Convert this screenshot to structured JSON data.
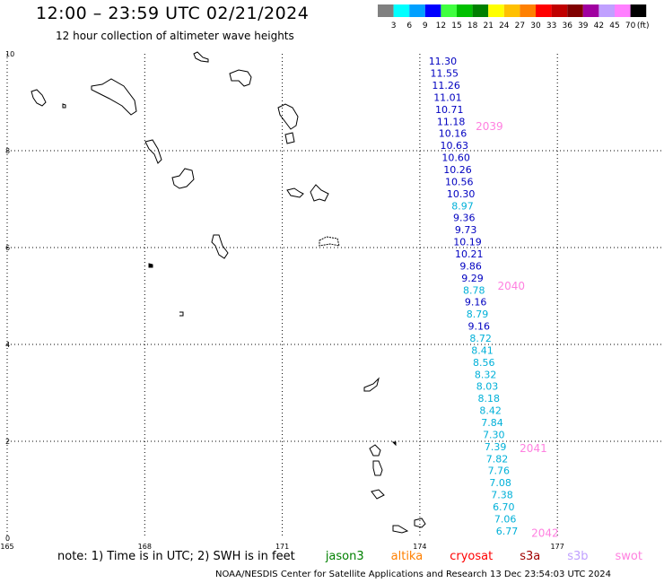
{
  "header": {
    "title": "12:00 – 23:59 UTC 02/21/2024",
    "subtitle": "12 hour collection of altimeter wave heights"
  },
  "colorbar": {
    "colors": [
      "#808080",
      "#00ffff",
      "#00a0ff",
      "#0000ff",
      "#40ff40",
      "#00c000",
      "#008000",
      "#ffff00",
      "#ffc000",
      "#ff8000",
      "#ff0000",
      "#c00000",
      "#800000",
      "#a000a0",
      "#c0a0ff",
      "#ff80ff",
      "#000000"
    ],
    "labels": [
      "3",
      "6",
      "9",
      "12",
      "15",
      "18",
      "21",
      "24",
      "27",
      "30",
      "33",
      "36",
      "39",
      "42",
      "45",
      "70"
    ],
    "unit": "(ft)"
  },
  "axes": {
    "x_ticks": [
      "165",
      "168",
      "171",
      "174",
      "177"
    ],
    "y_ticks": [
      "10",
      "8",
      "6",
      "4",
      "2",
      "0"
    ],
    "x_range": [
      165,
      179.2
    ],
    "y_range": [
      0,
      10
    ]
  },
  "track": {
    "color_dark": "#0000c0",
    "color_light": "#00b0d8",
    "values": [
      "11.30",
      "11.55",
      "11.26",
      "11.01",
      "10.71",
      "11.18",
      "10.16",
      "10.63",
      "10.60",
      "10.26",
      "10.56",
      "10.30",
      "8.97",
      "9.36",
      "9.73",
      "10.19",
      "10.21",
      "9.86",
      "9.29",
      "8.78",
      "9.16",
      "8.79",
      "9.16",
      "8.72",
      "8.41",
      "8.56",
      "8.32",
      "8.03",
      "8.18",
      "8.42",
      "7.84",
      "7.30",
      "7.39",
      "7.82",
      "7.76",
      "7.08",
      "7.38",
      "6.70",
      "7.06",
      "6.77"
    ],
    "time_labels": [
      {
        "text": "2039",
        "lat": 8.5
      },
      {
        "text": "2040",
        "lat": 5.2
      },
      {
        "text": "2041",
        "lat": 1.85
      },
      {
        "text": "2042",
        "lat": 0.1
      }
    ],
    "time_color": "#ff80e0"
  },
  "notes": {
    "prefix": "note:  1) Time is in UTC;  2) SWH is in feet",
    "satellites": [
      {
        "name": "jason3",
        "color": "#008000"
      },
      {
        "name": "altika",
        "color": "#ff8000"
      },
      {
        "name": "cryosat",
        "color": "#ff0000"
      },
      {
        "name": "s3a",
        "color": "#a00000"
      },
      {
        "name": "s3b",
        "color": "#c0a0ff"
      },
      {
        "name": "swot",
        "color": "#ff80e0"
      }
    ]
  },
  "credit": "NOAA/NESDIS Center for Satellite Applications and Research     13 Dec 23:54:03 UTC 2024"
}
